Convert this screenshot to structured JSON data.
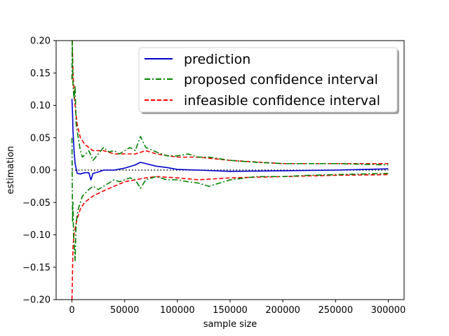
{
  "chart_data": {
    "type": "line",
    "xlabel": "sample size",
    "ylabel": "estimation",
    "xlim": [
      -15000,
      315000
    ],
    "ylim": [
      -0.2,
      0.2
    ],
    "x_ticks": [
      0,
      50000,
      100000,
      150000,
      200000,
      250000,
      300000
    ],
    "x_tick_labels": [
      "0",
      "50000",
      "100000",
      "150000",
      "200000",
      "250000",
      "300000"
    ],
    "y_ticks": [
      0.2,
      0.15,
      0.1,
      0.05,
      0.0,
      -0.05,
      -0.1,
      -0.15,
      -0.2
    ],
    "y_tick_labels": [
      "0.20",
      "0.15",
      "0.10",
      "0.05",
      "0.00",
      "−0.05",
      "−0.10",
      "−0.15",
      "−0.20"
    ],
    "grid": false,
    "legend_position": "top-right",
    "reference_line": {
      "y": 0,
      "color": "#000000",
      "style": "dotted"
    },
    "series": [
      {
        "name": "prediction",
        "color": "#0000cc",
        "style": "solid",
        "x": [
          0,
          500,
          1000,
          2000,
          3000,
          5000,
          8000,
          12000,
          16000,
          18000,
          20000,
          25000,
          30000,
          40000,
          50000,
          60000,
          65000,
          70000,
          80000,
          90000,
          100000,
          120000,
          150000,
          200000,
          250000,
          300000
        ],
        "y": [
          0.11,
          0.09,
          0.06,
          0.03,
          0.01,
          -0.005,
          -0.006,
          -0.004,
          -0.004,
          -0.015,
          -0.005,
          -0.003,
          0.0,
          0.0,
          0.003,
          0.008,
          0.012,
          0.01,
          0.006,
          0.004,
          0.001,
          0.0,
          -0.002,
          -0.001,
          0.0,
          0.002
        ]
      },
      {
        "name": "proposed confidence interval",
        "color": "#008000",
        "style": "dashdot",
        "x": [
          0,
          300,
          600,
          1000,
          1500,
          2000,
          3000,
          4000,
          6000,
          8000,
          10000,
          13000,
          16000,
          20000,
          25000,
          30000,
          35000,
          40000,
          45000,
          50000,
          55000,
          60000,
          65000,
          70000,
          80000,
          90000,
          100000,
          110000,
          120000,
          130000,
          150000,
          175000,
          200000,
          225000,
          250000,
          275000,
          300000
        ],
        "y": [
          0.14,
          0.2,
          0.17,
          0.13,
          0.12,
          0.11,
          0.13,
          0.07,
          0.05,
          0.03,
          0.02,
          0.025,
          0.03,
          0.015,
          0.025,
          0.035,
          0.028,
          0.03,
          0.025,
          0.03,
          0.035,
          0.03,
          0.052,
          0.035,
          0.028,
          0.022,
          0.022,
          0.025,
          0.02,
          0.02,
          0.015,
          0.012,
          0.01,
          0.01,
          0.01,
          0.009,
          0.008
        ],
        "y_lower": [
          0.05,
          -0.02,
          -0.08,
          -0.05,
          -0.1,
          -0.11,
          -0.14,
          -0.08,
          -0.06,
          -0.05,
          -0.04,
          -0.035,
          -0.03,
          -0.025,
          -0.03,
          -0.025,
          -0.02,
          -0.015,
          -0.018,
          -0.015,
          -0.012,
          -0.015,
          -0.028,
          -0.015,
          -0.01,
          -0.015,
          -0.015,
          -0.018,
          -0.02,
          -0.025,
          -0.015,
          -0.01,
          -0.01,
          -0.008,
          -0.007,
          -0.006,
          -0.005
        ]
      },
      {
        "name": "infeasible confidence interval",
        "color": "#ff0000",
        "style": "dashed",
        "x": [
          0,
          300,
          600,
          1000,
          2000,
          3000,
          5000,
          8000,
          12000,
          16000,
          20000,
          30000,
          40000,
          50000,
          60000,
          70000,
          80000,
          100000,
          120000,
          150000,
          200000,
          250000,
          300000
        ],
        "y": [
          0.2,
          0.2,
          0.18,
          0.15,
          0.12,
          0.1,
          0.07,
          0.05,
          0.04,
          0.035,
          0.03,
          0.03,
          0.025,
          0.025,
          0.025,
          0.03,
          0.025,
          0.02,
          0.02,
          0.015,
          0.01,
          0.01,
          0.01
        ],
        "y_lower": [
          -0.2,
          -0.18,
          -0.15,
          -0.12,
          -0.1,
          -0.09,
          -0.075,
          -0.06,
          -0.05,
          -0.045,
          -0.04,
          -0.032,
          -0.025,
          -0.018,
          -0.015,
          -0.012,
          -0.01,
          -0.012,
          -0.015,
          -0.012,
          -0.01,
          -0.008,
          -0.007
        ]
      }
    ]
  }
}
